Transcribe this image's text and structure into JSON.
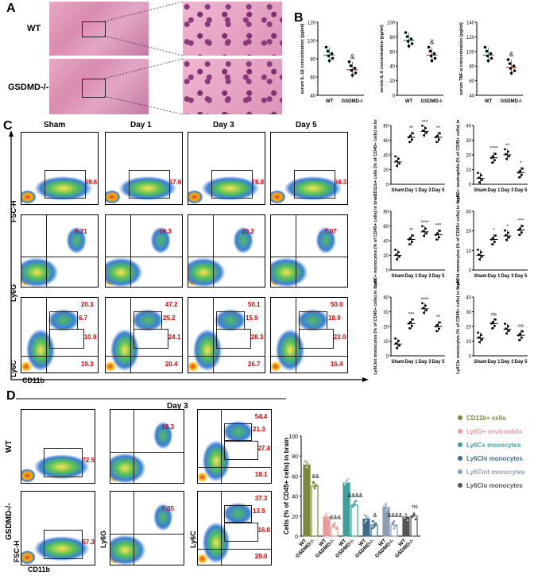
{
  "panels": {
    "A": "A",
    "B": "B",
    "C": "C",
    "D": "D"
  },
  "panel_a": {
    "row_labels": [
      "WT",
      "GSDMD-/-"
    ]
  },
  "panel_b": {
    "charts": [
      {
        "ylabel": "serum IL-1β concentration (pg/ml)",
        "yticks": [
          "40",
          "60",
          "80",
          "100",
          "120"
        ],
        "groups": [
          "WT",
          "GSDMD-/-"
        ],
        "sig": "&"
      },
      {
        "ylabel": "serum IL-6 concentration (pg/ml)",
        "yticks": [
          "0",
          "20",
          "40",
          "60",
          "80",
          "100"
        ],
        "groups": [
          "WT",
          "GSDMD-/-"
        ],
        "sig": "&"
      },
      {
        "ylabel": "serum TNF-α concentration (pg/ml)",
        "yticks": [
          "40",
          "60",
          "80",
          "100",
          "120",
          "140"
        ],
        "groups": [
          "WT",
          "GSDMD-/-"
        ],
        "sig": "&"
      }
    ]
  },
  "panel_c": {
    "col_headers": [
      "Sham",
      "Day 1",
      "Day 3",
      "Day 5"
    ],
    "row_axis_labels": [
      "FSC-H",
      "Ly6G",
      "Ly6C"
    ],
    "x_axis_label": "CD11b",
    "row1_values": [
      "39.6",
      "67.6",
      "76.8",
      "66.3"
    ],
    "row2_values": [
      "6.21",
      "19.3",
      "20.2",
      "7.07"
    ],
    "row3_values": [
      [
        "20.3",
        "6.7",
        "10.9",
        "19.3"
      ],
      [
        "47.2",
        "25.2",
        "24.1",
        "20.4"
      ],
      [
        "50.1",
        "15.9",
        "28.3",
        "26.7"
      ],
      [
        "50.0",
        "18.9",
        "23.0",
        "16.4"
      ]
    ],
    "charts": [
      {
        "ylabel": "CD11b+ cells (% of CD45+ cells) in brain",
        "yticks": [
          "0",
          "20",
          "40",
          "60",
          "80"
        ],
        "categories": [
          "Sham",
          "Day 1",
          "Day 3",
          "Day 5"
        ],
        "sig": [
          "",
          "**",
          "***",
          "**"
        ]
      },
      {
        "ylabel": "Ly6G+ neutrophils (% of CD45+ cells) in brain",
        "yticks": [
          "0",
          "10",
          "20",
          "30",
          "40"
        ],
        "categories": [
          "Sham",
          "Day 1",
          "Day 3",
          "Day 5"
        ],
        "sig": [
          "",
          "****",
          "**",
          "*"
        ]
      },
      {
        "ylabel": "Ly6C+ monocytes (% of CD45+ cells) in brain",
        "yticks": [
          "0",
          "20",
          "40",
          "60",
          "80"
        ],
        "categories": [
          "Sham",
          "Day 1",
          "Day 3",
          "Day 5"
        ],
        "sig": [
          "",
          "**",
          "****",
          "***"
        ]
      },
      {
        "ylabel": "Ly6Chi monocytes (% of CD45+ cells) in brain",
        "yticks": [
          "0",
          "10",
          "20",
          "30"
        ],
        "categories": [
          "Sham",
          "Day 1",
          "Day 3",
          "Day 5"
        ],
        "sig": [
          "",
          "*",
          "*",
          "***"
        ]
      },
      {
        "ylabel": "Ly6Cint monocytes (% of CD45+ cells) in brain",
        "yticks": [
          "0",
          "10",
          "20",
          "30",
          "40"
        ],
        "categories": [
          "Sham",
          "Day 1",
          "Day 3",
          "Day 5"
        ],
        "sig": [
          "",
          "***",
          "****",
          "**"
        ]
      },
      {
        "ylabel": "Ly6Clo monocytes (% of CD45+ cells) in brain",
        "yticks": [
          "0",
          "10",
          "20",
          "30",
          "40"
        ],
        "categories": [
          "Sham",
          "Day 1",
          "Day 3",
          "Day 5"
        ],
        "sig": [
          "",
          "ns",
          "",
          "ns"
        ]
      }
    ]
  },
  "panel_d": {
    "header": "Day 3",
    "row_labels": [
      "WT",
      "GSDMD-/-"
    ],
    "axis_labels": {
      "fsc": "FSC-H",
      "cd11b": "CD11b",
      "ly6g": "Ly6G",
      "ly6c": "Ly6C"
    },
    "wt_values": {
      "cd11b": "72.5",
      "ly6g": "19.3",
      "ly6c": [
        "54.4",
        "21.3",
        "27.4",
        "18.1"
      ]
    },
    "ko_values": {
      "cd11b": "57.3",
      "ly6g": "7.05",
      "ly6c": [
        "37.3",
        "13.5",
        "16.0",
        "20.0"
      ]
    }
  },
  "chart_data": {
    "type": "bar",
    "title": "",
    "ylabel": "Cells (% of CD45+ cells) in brain",
    "ylim": [
      0,
      100
    ],
    "yticks": [
      "0",
      "20",
      "40",
      "60",
      "80",
      "100"
    ],
    "categories": [
      "CD11b+ cells",
      "Ly6G+ neutrophils",
      "Ly6C+ monocytes",
      "Ly6Chi monocytes",
      "Ly6Cint monocytes",
      "Ly6Clo monocytes"
    ],
    "legend_labels": [
      "CD11b+ cells",
      "Ly6G+ neutrophils",
      "Ly6C+ monocytes",
      "Ly6Chi monocytes",
      "Ly6Cint monocytes",
      "Ly6Clo monocytes"
    ],
    "colors": [
      "#7a8a3a",
      "#e89a9a",
      "#3f9f9a",
      "#3d6a8a",
      "#8a9fb5",
      "#555555"
    ],
    "series": [
      {
        "name": "WT",
        "values": [
          71,
          19,
          53,
          17,
          29,
          19
        ]
      },
      {
        "name": "GSDMD-/-",
        "values": [
          50,
          9,
          31,
          11,
          11,
          20
        ]
      }
    ],
    "sig": [
      "&&",
      "&&&",
      "&&&&",
      "&",
      "&&&&",
      "ns"
    ],
    "xlabels": [
      "WT",
      "GSDMD-/-"
    ]
  }
}
